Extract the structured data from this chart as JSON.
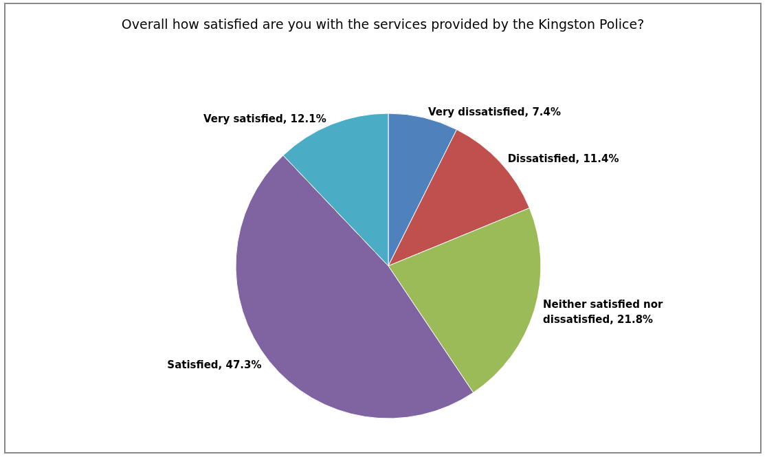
{
  "chart_data": {
    "type": "pie",
    "title": "Overall how satisfied are you with the services provided by the Kingston Police?",
    "categories": [
      "Very dissatisfied",
      "Dissatisfied",
      "Neither satisfied nor dissatisfied",
      "Satisfied",
      "Very satisfied"
    ],
    "values": [
      7.4,
      11.4,
      21.8,
      47.3,
      12.1
    ],
    "value_labels": [
      "7.4%",
      "11.4%",
      "21.8%",
      "47.3%",
      "12.1%"
    ],
    "colors": [
      "#4f81bd",
      "#c0504d",
      "#9bbb59",
      "#8064a2",
      "#4bacc6"
    ],
    "legend": false
  }
}
